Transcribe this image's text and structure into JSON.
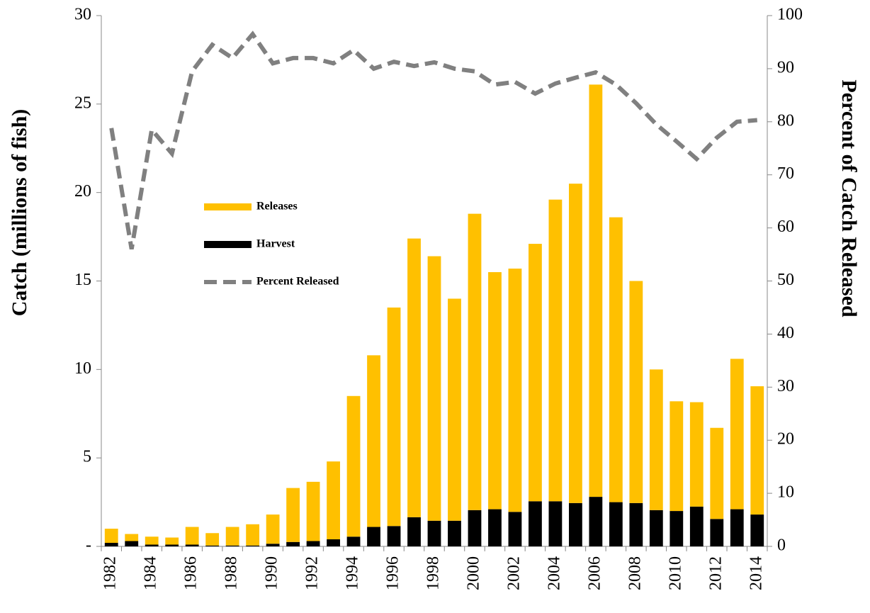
{
  "chart_data": {
    "type": "stacked-bar-line",
    "y_label": "Catch (millions of fish)",
    "y2_label": "Percent of Catch Released",
    "categories": [
      "1982",
      null,
      "1984",
      null,
      "1986",
      null,
      "1988",
      null,
      "1990",
      null,
      "1992",
      null,
      "1994",
      null,
      "1996",
      null,
      "1998",
      null,
      "2000",
      null,
      "2002",
      null,
      "2004",
      null,
      "2006",
      null,
      "2008",
      null,
      "2010",
      null,
      "2012",
      null,
      "2014"
    ],
    "series": [
      {
        "name": "Releases",
        "type": "bar",
        "color": "#ffc000",
        "values": [
          0.8,
          0.4,
          0.45,
          0.4,
          1.0,
          0.7,
          1.05,
          1.2,
          1.65,
          3.05,
          3.35,
          4.4,
          7.95,
          9.7,
          12.35,
          15.75,
          14.95,
          12.55,
          16.75,
          13.4,
          13.75,
          14.55,
          17.05,
          18.05,
          23.3,
          16.1,
          12.55,
          7.95,
          6.2,
          5.9,
          5.15,
          8.5,
          7.25
        ]
      },
      {
        "name": "Harvest",
        "type": "bar",
        "color": "#000000",
        "values": [
          0.2,
          0.3,
          0.1,
          0.1,
          0.1,
          0.05,
          0.05,
          0.05,
          0.15,
          0.25,
          0.3,
          0.4,
          0.55,
          1.1,
          1.15,
          1.65,
          1.45,
          1.45,
          2.05,
          2.1,
          1.95,
          2.55,
          2.55,
          2.45,
          2.8,
          2.5,
          2.45,
          2.05,
          2.0,
          2.25,
          1.55,
          2.1,
          1.8
        ]
      },
      {
        "name": "Percent Released",
        "type": "line",
        "axis": "y2",
        "color": "#808080",
        "values": [
          78.8,
          56,
          78.5,
          74,
          89.5,
          94.5,
          92,
          96.5,
          91,
          92,
          92,
          91,
          93.5,
          90,
          91.3,
          90.5,
          91.2,
          90,
          89.5,
          87,
          87.5,
          85.3,
          87.2,
          88.3,
          89.3,
          87,
          83.5,
          79.5,
          76.3,
          73,
          77,
          80,
          80.3
        ]
      }
    ],
    "ylim": [
      0,
      30
    ],
    "yticks": [
      {
        "value": 0,
        "label": "-"
      },
      5,
      10,
      15,
      20,
      25,
      30
    ],
    "y2lim": [
      0,
      100
    ],
    "y2ticks": [
      0,
      10,
      20,
      30,
      40,
      50,
      60,
      70,
      80,
      90,
      100
    ]
  }
}
